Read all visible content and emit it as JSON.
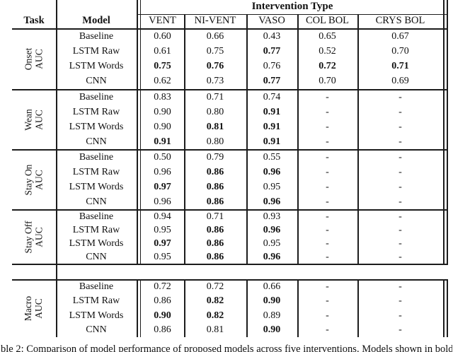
{
  "table": {
    "header": {
      "intervention_type": "Intervention Type",
      "task": "Task",
      "model": "Model",
      "columns": [
        "VENT",
        "NI-VENT",
        "VASO",
        "COL BOL",
        "CRYS BOL"
      ]
    },
    "sections": [
      {
        "task_line1": "Onset",
        "task_line2": "AUC",
        "rows": [
          {
            "model": "Baseline",
            "values": [
              "0.60",
              "0.66",
              "0.43",
              "0.65",
              "0.67"
            ],
            "bold": [
              false,
              false,
              false,
              false,
              false
            ]
          },
          {
            "model": "LSTM Raw",
            "values": [
              "0.61",
              "0.75",
              "0.77",
              "0.52",
              "0.70"
            ],
            "bold": [
              false,
              false,
              true,
              false,
              false
            ]
          },
          {
            "model": "LSTM Words",
            "values": [
              "0.75",
              "0.76",
              "0.76",
              "0.72",
              "0.71"
            ],
            "bold": [
              true,
              true,
              false,
              true,
              true
            ]
          },
          {
            "model": "CNN",
            "values": [
              "0.62",
              "0.73",
              "0.77",
              "0.70",
              "0.69"
            ],
            "bold": [
              false,
              false,
              true,
              false,
              false
            ]
          }
        ]
      },
      {
        "task_line1": "Wean",
        "task_line2": "AUC",
        "rows": [
          {
            "model": "Baseline",
            "values": [
              "0.83",
              "0.71",
              "0.74",
              "-",
              "-"
            ],
            "bold": [
              false,
              false,
              false,
              false,
              false
            ]
          },
          {
            "model": "LSTM Raw",
            "values": [
              "0.90",
              "0.80",
              "0.91",
              "-",
              "-"
            ],
            "bold": [
              false,
              false,
              true,
              false,
              false
            ]
          },
          {
            "model": "LSTM Words",
            "values": [
              "0.90",
              "0.81",
              "0.91",
              "-",
              "-"
            ],
            "bold": [
              false,
              true,
              true,
              false,
              false
            ]
          },
          {
            "model": "CNN",
            "values": [
              "0.91",
              "0.80",
              "0.91",
              "-",
              "-"
            ],
            "bold": [
              true,
              false,
              true,
              false,
              false
            ]
          }
        ]
      },
      {
        "task_line1": "Stay On",
        "task_line2": "AUC",
        "rows": [
          {
            "model": "Baseline",
            "values": [
              "0.50",
              "0.79",
              "0.55",
              "-",
              "-"
            ],
            "bold": [
              false,
              false,
              false,
              false,
              false
            ]
          },
          {
            "model": "LSTM Raw",
            "values": [
              "0.96",
              "0.86",
              "0.96",
              "-",
              "-"
            ],
            "bold": [
              false,
              true,
              true,
              false,
              false
            ]
          },
          {
            "model": "LSTM Words",
            "values": [
              "0.97",
              "0.86",
              "0.95",
              "-",
              "-"
            ],
            "bold": [
              true,
              true,
              false,
              false,
              false
            ]
          },
          {
            "model": "CNN",
            "values": [
              "0.96",
              "0.86",
              "0.96",
              "-",
              "-"
            ],
            "bold": [
              false,
              true,
              true,
              false,
              false
            ]
          }
        ]
      },
      {
        "task_line1": "Stay Off",
        "task_line2": "AUC",
        "rows": [
          {
            "model": "Baseline",
            "values": [
              "0.94",
              "0.71",
              "0.93",
              "-",
              "-"
            ],
            "bold": [
              false,
              false,
              false,
              false,
              false
            ]
          },
          {
            "model": "LSTM Raw",
            "values": [
              "0.95",
              "0.86",
              "0.96",
              "-",
              "-"
            ],
            "bold": [
              false,
              true,
              true,
              false,
              false
            ]
          },
          {
            "model": "LSTM Words",
            "values": [
              "0.97",
              "0.86",
              "0.95",
              "-",
              "-"
            ],
            "bold": [
              true,
              true,
              false,
              false,
              false
            ]
          },
          {
            "model": "CNN",
            "values": [
              "0.95",
              "0.86",
              "0.96",
              "-",
              "-"
            ],
            "bold": [
              false,
              true,
              true,
              false,
              false
            ]
          }
        ]
      },
      {
        "task_line1": "Macro",
        "task_line2": "AUC",
        "rows": [
          {
            "model": "Baseline",
            "values": [
              "0.72",
              "0.72",
              "0.66",
              "-",
              "-"
            ],
            "bold": [
              false,
              false,
              false,
              false,
              false
            ]
          },
          {
            "model": "LSTM Raw",
            "values": [
              "0.86",
              "0.82",
              "0.90",
              "-",
              "-"
            ],
            "bold": [
              false,
              true,
              true,
              false,
              false
            ]
          },
          {
            "model": "LSTM Words",
            "values": [
              "0.90",
              "0.82",
              "0.89",
              "-",
              "-"
            ],
            "bold": [
              true,
              true,
              false,
              false,
              false
            ]
          },
          {
            "model": "CNN",
            "values": [
              "0.86",
              "0.81",
              "0.90",
              "-",
              "-"
            ],
            "bold": [
              false,
              false,
              true,
              false,
              false
            ]
          }
        ]
      }
    ]
  },
  "caption": {
    "visible_text": "ble 2: Comparison of model performance of proposed models across five interventions. Models shown in bold"
  },
  "colors": {
    "background": "#ffffff",
    "text": "#111111",
    "rule": "#1c1c1c"
  }
}
